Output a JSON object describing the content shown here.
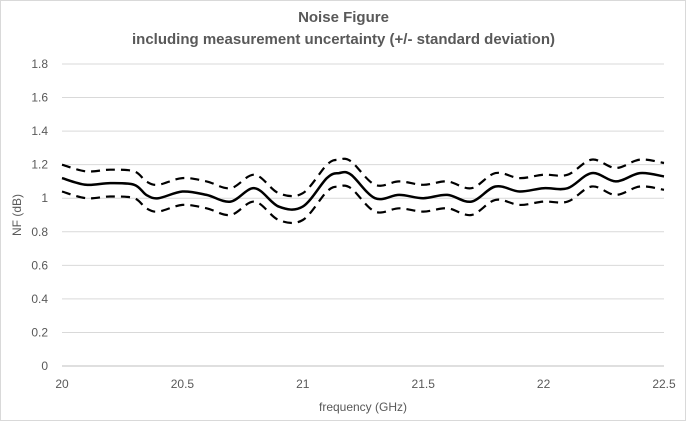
{
  "chart_data": {
    "type": "line",
    "title": "Noise Figure",
    "subtitle": "including measurement uncertainty (+/- standard deviation)",
    "xlabel": "frequency  (GHz)",
    "ylabel": "NF (dB)",
    "xlim": [
      20,
      22.5
    ],
    "ylim": [
      0,
      1.8
    ],
    "xticks": [
      "20",
      "20.5",
      "21",
      "21.5",
      "22",
      "22.5"
    ],
    "yticks": [
      "0",
      "0.2",
      "0.4",
      "0.6",
      "0.8",
      "1",
      "1.2",
      "1.4",
      "1.6",
      "1.8"
    ],
    "grid": true,
    "x": [
      20.0,
      20.1,
      20.2,
      20.3,
      20.35,
      20.4,
      20.5,
      20.6,
      20.7,
      20.8,
      20.9,
      21.0,
      21.1,
      21.15,
      21.2,
      21.3,
      21.4,
      21.5,
      21.6,
      21.7,
      21.8,
      21.9,
      22.0,
      22.1,
      22.2,
      22.3,
      22.4,
      22.5
    ],
    "series": [
      {
        "style": "solid",
        "values": [
          1.12,
          1.08,
          1.09,
          1.08,
          1.02,
          1.0,
          1.04,
          1.02,
          0.98,
          1.06,
          0.95,
          0.95,
          1.12,
          1.15,
          1.14,
          1.0,
          1.02,
          1.0,
          1.02,
          0.98,
          1.07,
          1.04,
          1.06,
          1.06,
          1.15,
          1.1,
          1.15,
          1.13
        ]
      },
      {
        "style": "dashed",
        "values": [
          1.2,
          1.16,
          1.17,
          1.16,
          1.1,
          1.08,
          1.12,
          1.1,
          1.06,
          1.14,
          1.03,
          1.03,
          1.2,
          1.23,
          1.22,
          1.08,
          1.1,
          1.08,
          1.1,
          1.06,
          1.15,
          1.12,
          1.14,
          1.14,
          1.23,
          1.18,
          1.23,
          1.21
        ]
      },
      {
        "style": "dashed",
        "values": [
          1.04,
          1.0,
          1.01,
          1.0,
          0.94,
          0.92,
          0.96,
          0.94,
          0.9,
          0.98,
          0.87,
          0.87,
          1.04,
          1.07,
          1.06,
          0.92,
          0.94,
          0.92,
          0.94,
          0.9,
          0.99,
          0.96,
          0.98,
          0.98,
          1.07,
          1.02,
          1.07,
          1.05
        ]
      }
    ]
  }
}
